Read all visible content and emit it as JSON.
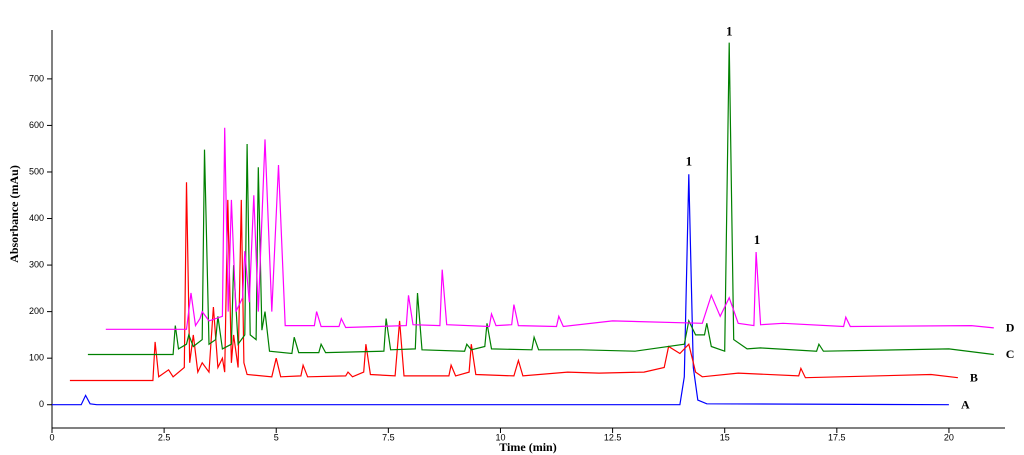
{
  "chart_data": {
    "type": "line",
    "x_label": "Time (min)",
    "y_label": "Absorbance (mAu)",
    "xlim": [
      0,
      21.25
    ],
    "ylim": [
      -50,
      805
    ],
    "xticks": [
      0,
      2.5,
      5,
      7.5,
      10,
      12.5,
      15,
      17.5,
      20
    ],
    "yticks": [
      0,
      100,
      200,
      300,
      400,
      500,
      600,
      700
    ],
    "series": [
      {
        "name": "A",
        "color": "#0000ff",
        "x": [
          0,
          0.65,
          0.75,
          0.85,
          1.0,
          14.0,
          14.1,
          14.2,
          14.3,
          14.4,
          14.6,
          20
        ],
        "values": [
          0,
          0,
          20,
          2,
          0,
          0,
          60,
          495,
          80,
          10,
          2,
          0
        ]
      },
      {
        "name": "B",
        "color": "#ff0000",
        "x": [
          0.4,
          2.25,
          2.3,
          2.38,
          2.6,
          2.7,
          2.95,
          3.0,
          3.07,
          3.15,
          3.25,
          3.35,
          3.5,
          3.6,
          3.7,
          3.8,
          3.85,
          3.92,
          4.0,
          4.05,
          4.15,
          4.22,
          4.28,
          4.35,
          4.9,
          5.0,
          5.1,
          5.55,
          5.6,
          5.7,
          6.55,
          6.6,
          6.7,
          6.95,
          7.0,
          7.1,
          7.65,
          7.75,
          7.85,
          8.85,
          8.9,
          9.0,
          9.3,
          9.35,
          9.45,
          10.3,
          10.4,
          10.5,
          11.5,
          12.2,
          13.2,
          13.65,
          13.75,
          14.0,
          14.2,
          14.35,
          14.5,
          15.3,
          16.65,
          16.7,
          16.8,
          19.6,
          20.2
        ],
        "values": [
          52,
          52,
          135,
          60,
          75,
          60,
          80,
          478,
          90,
          150,
          70,
          90,
          70,
          210,
          80,
          100,
          70,
          440,
          90,
          150,
          80,
          440,
          90,
          65,
          60,
          100,
          60,
          62,
          85,
          60,
          62,
          70,
          60,
          70,
          130,
          65,
          62,
          180,
          62,
          62,
          85,
          62,
          70,
          130,
          65,
          62,
          95,
          62,
          70,
          68,
          70,
          80,
          125,
          110,
          130,
          70,
          60,
          68,
          62,
          78,
          58,
          65,
          58
        ]
      },
      {
        "name": "C",
        "color": "#008000",
        "x": [
          0.8,
          2.7,
          2.75,
          2.82,
          3.0,
          3.05,
          3.15,
          3.35,
          3.4,
          3.5,
          3.65,
          3.7,
          3.8,
          4.0,
          4.05,
          4.15,
          4.3,
          4.35,
          4.42,
          4.55,
          4.6,
          4.68,
          4.75,
          4.85,
          5.35,
          5.4,
          5.5,
          5.95,
          6.0,
          6.1,
          7.4,
          7.45,
          7.55,
          8.1,
          8.15,
          8.25,
          9.2,
          9.25,
          9.35,
          9.65,
          9.7,
          9.8,
          10.7,
          10.75,
          10.85,
          11.8,
          13.0,
          14.1,
          14.2,
          14.35,
          14.55,
          14.6,
          14.7,
          15.0,
          15.1,
          15.2,
          15.5,
          15.8,
          17.05,
          17.1,
          17.2,
          20.0,
          21.0
        ],
        "values": [
          108,
          108,
          170,
          120,
          130,
          150,
          125,
          140,
          548,
          130,
          140,
          190,
          120,
          130,
          300,
          130,
          150,
          560,
          150,
          140,
          510,
          160,
          200,
          115,
          110,
          145,
          112,
          112,
          130,
          112,
          115,
          185,
          118,
          120,
          240,
          118,
          115,
          130,
          118,
          125,
          175,
          120,
          118,
          145,
          118,
          118,
          115,
          130,
          180,
          150,
          150,
          175,
          125,
          115,
          778,
          140,
          120,
          122,
          115,
          130,
          115,
          120,
          108
        ]
      },
      {
        "name": "D",
        "color": "#ff00ff",
        "x": [
          1.2,
          3.0,
          3.1,
          3.2,
          3.3,
          3.35,
          3.5,
          3.8,
          3.85,
          3.93,
          4.0,
          4.1,
          4.25,
          4.3,
          4.4,
          4.5,
          4.6,
          4.75,
          4.9,
          5.05,
          5.2,
          5.85,
          5.9,
          6.0,
          6.4,
          6.45,
          6.55,
          7.9,
          7.95,
          8.05,
          8.65,
          8.7,
          8.8,
          9.75,
          9.8,
          9.9,
          10.25,
          10.3,
          10.4,
          11.25,
          11.3,
          11.4,
          12.5,
          14.5,
          14.7,
          14.9,
          15.1,
          15.3,
          15.65,
          15.7,
          15.8,
          16.3,
          17.65,
          17.7,
          17.8,
          20.5,
          21.0
        ],
        "values": [
          162,
          162,
          240,
          170,
          185,
          200,
          180,
          190,
          595,
          200,
          440,
          200,
          230,
          330,
          220,
          450,
          200,
          570,
          200,
          515,
          170,
          170,
          200,
          168,
          168,
          185,
          166,
          170,
          235,
          172,
          170,
          290,
          172,
          168,
          195,
          170,
          172,
          215,
          170,
          168,
          190,
          168,
          180,
          175,
          235,
          190,
          230,
          175,
          170,
          328,
          172,
          175,
          168,
          188,
          168,
          170,
          165
        ]
      }
    ],
    "annotations": [
      {
        "text": "1",
        "x": 14.2,
        "y": 520
      },
      {
        "text": "1",
        "x": 15.1,
        "y": 800
      },
      {
        "text": "1",
        "x": 15.72,
        "y": 352
      }
    ]
  }
}
